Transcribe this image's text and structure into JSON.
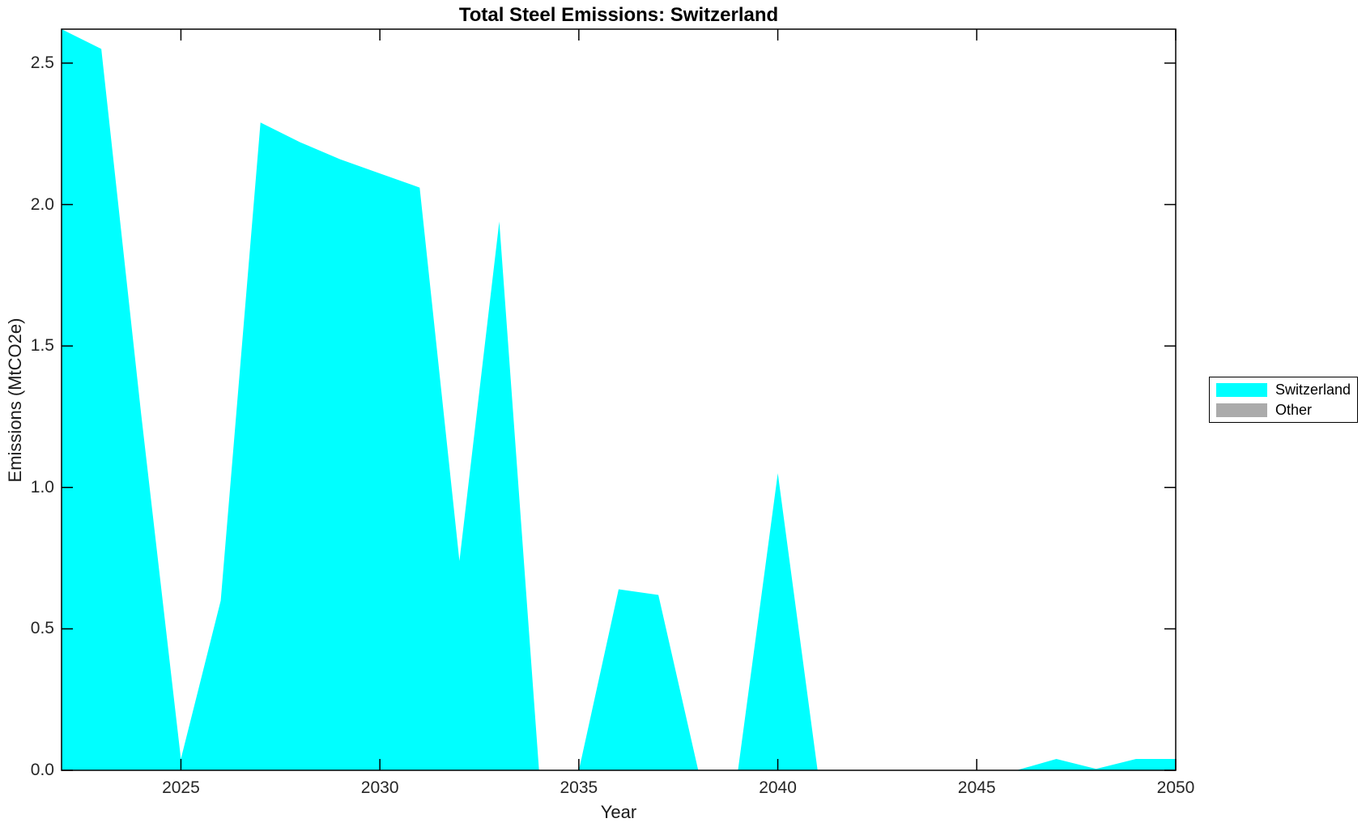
{
  "chart_data": {
    "type": "area",
    "title": "Total Steel Emissions: Switzerland",
    "xlabel": "Year",
    "ylabel": "Emissions (MtCO2e)",
    "xlim": [
      2022,
      2050
    ],
    "ylim": [
      0,
      2.62
    ],
    "grid": false,
    "xticks": [
      2025,
      2030,
      2035,
      2040,
      2045,
      2050
    ],
    "ytick_values": [
      0,
      0.5,
      1.0,
      1.5,
      2.0,
      2.5
    ],
    "ytick_labels": [
      "0.0",
      "0.5",
      "1.0",
      "1.5",
      "2.0",
      "2.5"
    ],
    "series": [
      {
        "name": "Switzerland",
        "color": "#00FFFF",
        "x": [
          2022,
          2023,
          2024,
          2025,
          2026,
          2027,
          2028,
          2029,
          2030,
          2031,
          2032,
          2033,
          2034,
          2035,
          2036,
          2037,
          2038,
          2039,
          2040,
          2041,
          2042,
          2043,
          2044,
          2045,
          2046,
          2047,
          2048,
          2049,
          2050
        ],
        "values": [
          2.62,
          2.55,
          1.26,
          0.04,
          0.6,
          2.29,
          2.22,
          2.16,
          2.11,
          2.06,
          0.74,
          1.94,
          0,
          0,
          0.64,
          0.62,
          0,
          0,
          1.05,
          0,
          0,
          0,
          0,
          0,
          0,
          0.04,
          0.005,
          0.04,
          0.04
        ]
      }
    ],
    "legend": {
      "position": "right-outside",
      "entries": [
        {
          "label": "Switzerland",
          "color": "#00FFFF"
        },
        {
          "label": "Other",
          "color": "#ABABAB"
        }
      ]
    },
    "axis_color": "#000000",
    "background_color": "#ffffff"
  }
}
